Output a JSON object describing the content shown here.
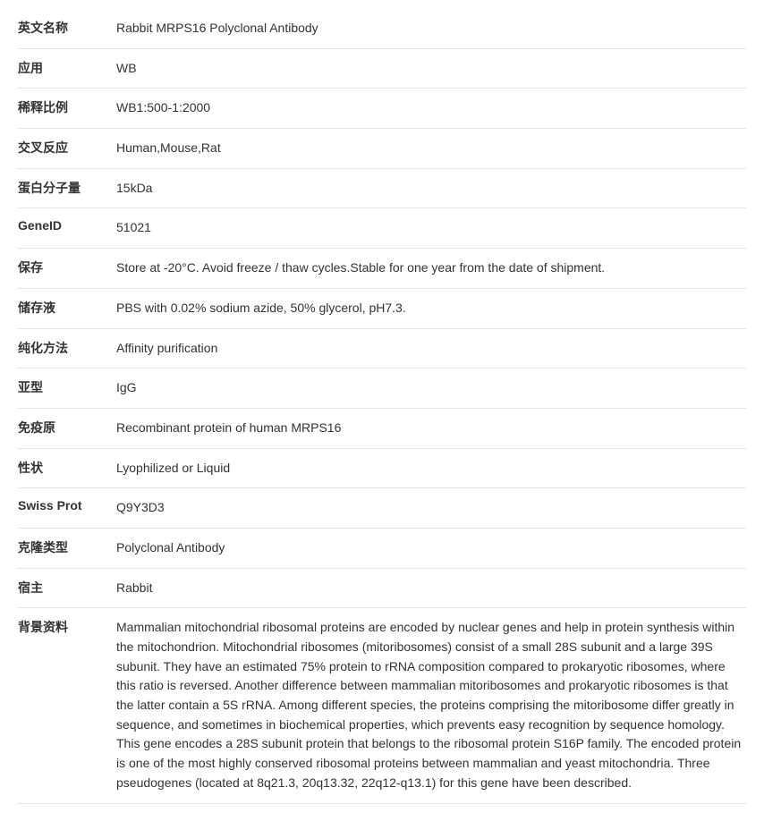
{
  "rows": [
    {
      "label": "英文名称",
      "value": "Rabbit MRPS16 Polyclonal Antibody"
    },
    {
      "label": "应用",
      "value": "WB"
    },
    {
      "label": "稀释比例",
      "value": "WB1:500-1:2000"
    },
    {
      "label": "交叉反应",
      "value": "Human,Mouse,Rat"
    },
    {
      "label": "蛋白分子量",
      "value": "15kDa"
    },
    {
      "label": "GeneID",
      "value": "51021"
    },
    {
      "label": "保存",
      "value": "Store at -20°C. Avoid freeze / thaw cycles.Stable for one year from the date of shipment."
    },
    {
      "label": "储存液",
      "value": "PBS with 0.02% sodium azide, 50% glycerol, pH7.3."
    },
    {
      "label": "纯化方法",
      "value": "Affinity purification"
    },
    {
      "label": "亚型",
      "value": "IgG"
    },
    {
      "label": "免疫原",
      "value": "Recombinant protein of human MRPS16"
    },
    {
      "label": "性状",
      "value": "Lyophilized or Liquid"
    },
    {
      "label": "Swiss Prot",
      "value": "Q9Y3D3"
    },
    {
      "label": "克隆类型",
      "value": "Polyclonal Antibody"
    },
    {
      "label": "宿主",
      "value": "Rabbit"
    },
    {
      "label": "背景资料",
      "value": "Mammalian mitochondrial ribosomal proteins are encoded by nuclear genes and help in protein synthesis within the mitochondrion. Mitochondrial ribosomes (mitoribosomes) consist of a small 28S subunit and a large 39S subunit. They have an estimated 75% protein to rRNA composition compared to prokaryotic ribosomes, where this ratio is reversed. Another difference between mammalian mitoribosomes and prokaryotic ribosomes is that the latter contain a 5S rRNA. Among different species, the proteins comprising the mitoribosome differ greatly in sequence, and sometimes in biochemical properties, which prevents easy recognition by sequence homology. This gene encodes a 28S subunit protein that belongs to the ribosomal protein S16P family. The encoded protein is one of the most highly conserved ribosomal proteins between mammalian and yeast mitochondria. Three pseudogenes (located at 8q21.3, 20q13.32, 22q12-q13.1) for this gene have been described."
    }
  ]
}
